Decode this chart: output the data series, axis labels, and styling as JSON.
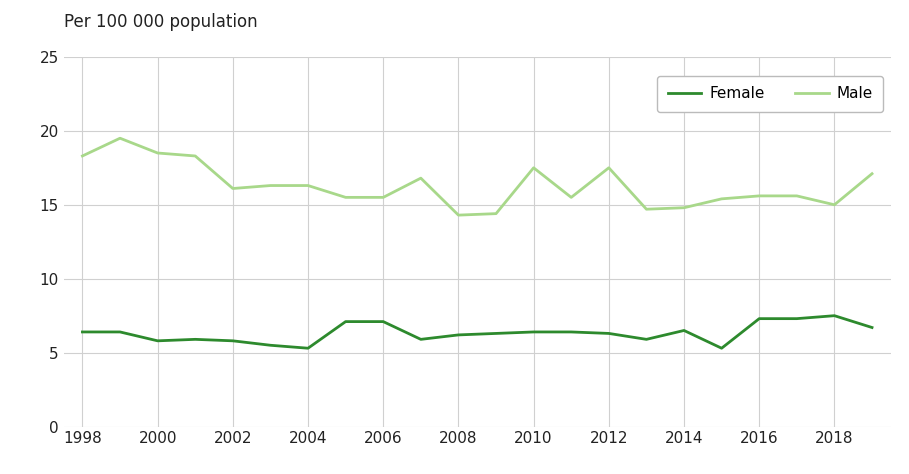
{
  "years": [
    1998,
    1999,
    2000,
    2001,
    2002,
    2003,
    2004,
    2005,
    2006,
    2007,
    2008,
    2009,
    2010,
    2011,
    2012,
    2013,
    2014,
    2015,
    2016,
    2017,
    2018,
    2019
  ],
  "female": [
    6.4,
    6.4,
    5.8,
    5.9,
    5.8,
    5.5,
    5.3,
    7.1,
    7.1,
    5.9,
    6.2,
    6.3,
    6.4,
    6.4,
    6.3,
    5.9,
    6.5,
    5.3,
    7.3,
    7.3,
    7.5,
    6.7
  ],
  "male": [
    18.3,
    19.5,
    18.5,
    18.3,
    16.1,
    16.3,
    16.3,
    15.5,
    15.5,
    16.8,
    14.3,
    14.4,
    17.5,
    15.5,
    17.5,
    14.7,
    14.8,
    15.4,
    15.6,
    15.6,
    15.0,
    17.1
  ],
  "female_color": "#2d8a2d",
  "male_color": "#a8d88a",
  "ylabel": "Per 100 000 population",
  "ylim": [
    0,
    25
  ],
  "yticks": [
    0,
    5,
    10,
    15,
    20,
    25
  ],
  "xlim_min": 1997.5,
  "xlim_max": 2019.5,
  "xticks": [
    1998,
    2000,
    2002,
    2004,
    2006,
    2008,
    2010,
    2012,
    2014,
    2016,
    2018
  ],
  "background_color": "#ffffff",
  "grid_color": "#d0d0d0",
  "legend_labels": [
    "Female",
    "Male"
  ],
  "line_width": 2.0,
  "title_fontsize": 12,
  "tick_fontsize": 11
}
